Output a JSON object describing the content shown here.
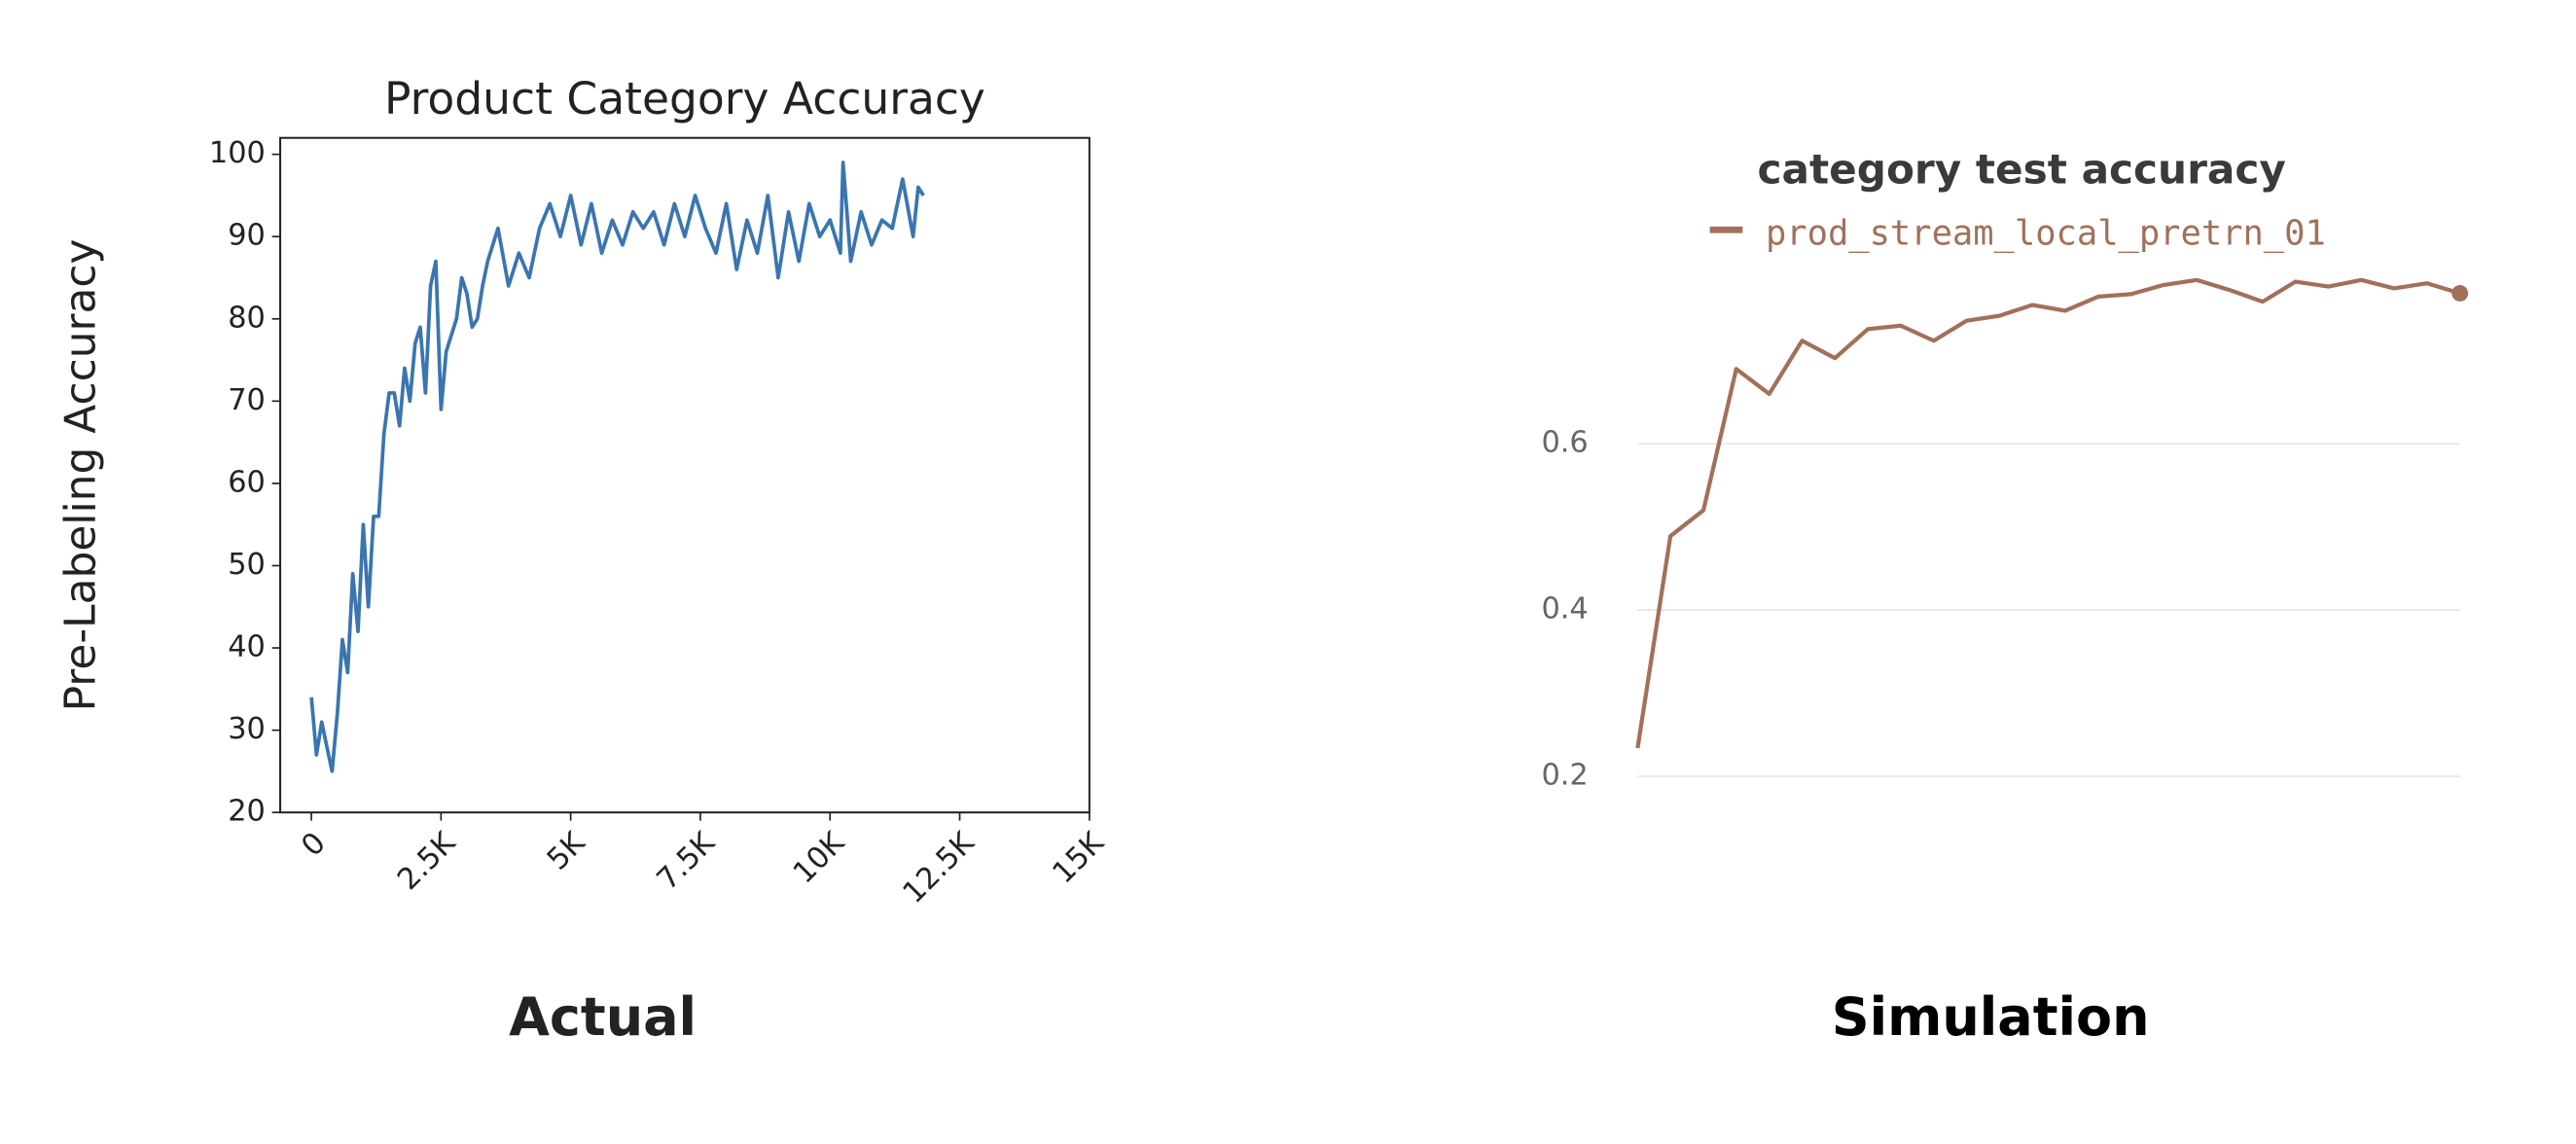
{
  "chart_data": [
    {
      "type": "line",
      "title": "Product Category Accuracy",
      "ylabel": "Pre-Labeling Accuracy",
      "caption": "Actual",
      "color": "#3a75b0",
      "x": [
        0,
        100,
        200,
        300,
        400,
        500,
        600,
        700,
        800,
        900,
        1000,
        1100,
        1200,
        1300,
        1400,
        1500,
        1600,
        1700,
        1800,
        1900,
        2000,
        2100,
        2200,
        2300,
        2400,
        2500,
        2600,
        2800,
        2900,
        3000,
        3100,
        3200,
        3300,
        3400,
        3600,
        3800,
        4000,
        4200,
        4400,
        4600,
        4800,
        5000,
        5200,
        5400,
        5600,
        5800,
        6000,
        6200,
        6400,
        6600,
        6800,
        7000,
        7200,
        7400,
        7600,
        7800,
        8000,
        8200,
        8400,
        8600,
        8800,
        9000,
        9200,
        9400,
        9600,
        9800,
        10000,
        10200,
        10250,
        10400,
        10600,
        10800,
        11000,
        11200,
        11400,
        11600,
        11700,
        11800
      ],
      "values": [
        34,
        27,
        31,
        28,
        25,
        32,
        41,
        37,
        49,
        42,
        55,
        45,
        56,
        56,
        66,
        71,
        71,
        67,
        74,
        70,
        77,
        79,
        71,
        84,
        87,
        69,
        76,
        80,
        85,
        83,
        79,
        80,
        84,
        87,
        91,
        84,
        88,
        85,
        91,
        94,
        90,
        95,
        89,
        94,
        88,
        92,
        89,
        93,
        91,
        93,
        89,
        94,
        90,
        95,
        91,
        88,
        94,
        86,
        92,
        88,
        95,
        85,
        93,
        87,
        94,
        90,
        92,
        88,
        99,
        87,
        93,
        89,
        92,
        91,
        97,
        90,
        96,
        95
      ],
      "xlim": [
        -600,
        15000
      ],
      "ylim": [
        20,
        102
      ],
      "xticks": [
        0,
        {
          "value": 2500,
          "label": "2.5K"
        },
        {
          "value": 5000,
          "label": "5K"
        },
        {
          "value": 7500,
          "label": "7.5K"
        },
        {
          "value": 10000,
          "label": "10K"
        },
        {
          "value": 12500,
          "label": "12.5K"
        },
        {
          "value": 15000,
          "label": "15K"
        }
      ],
      "yticks": [
        20,
        30,
        40,
        50,
        60,
        70,
        80,
        90,
        100
      ]
    },
    {
      "type": "line",
      "title": "category test accuracy",
      "caption": "Simulation",
      "series": [
        {
          "name": "prod_stream_local_pretrn_01",
          "color": "#a2705a",
          "values": [
            0.234,
            0.489,
            0.52,
            0.69,
            0.66,
            0.724,
            0.703,
            0.738,
            0.742,
            0.724,
            0.748,
            0.754,
            0.767,
            0.76,
            0.777,
            0.78,
            0.791,
            0.797,
            0.785,
            0.771,
            0.795,
            0.789,
            0.797,
            0.787,
            0.793,
            0.781
          ]
        }
      ],
      "ylim": [
        0.2,
        0.81
      ],
      "yticks": [
        0.2,
        0.4,
        0.6
      ],
      "grid": true
    }
  ]
}
